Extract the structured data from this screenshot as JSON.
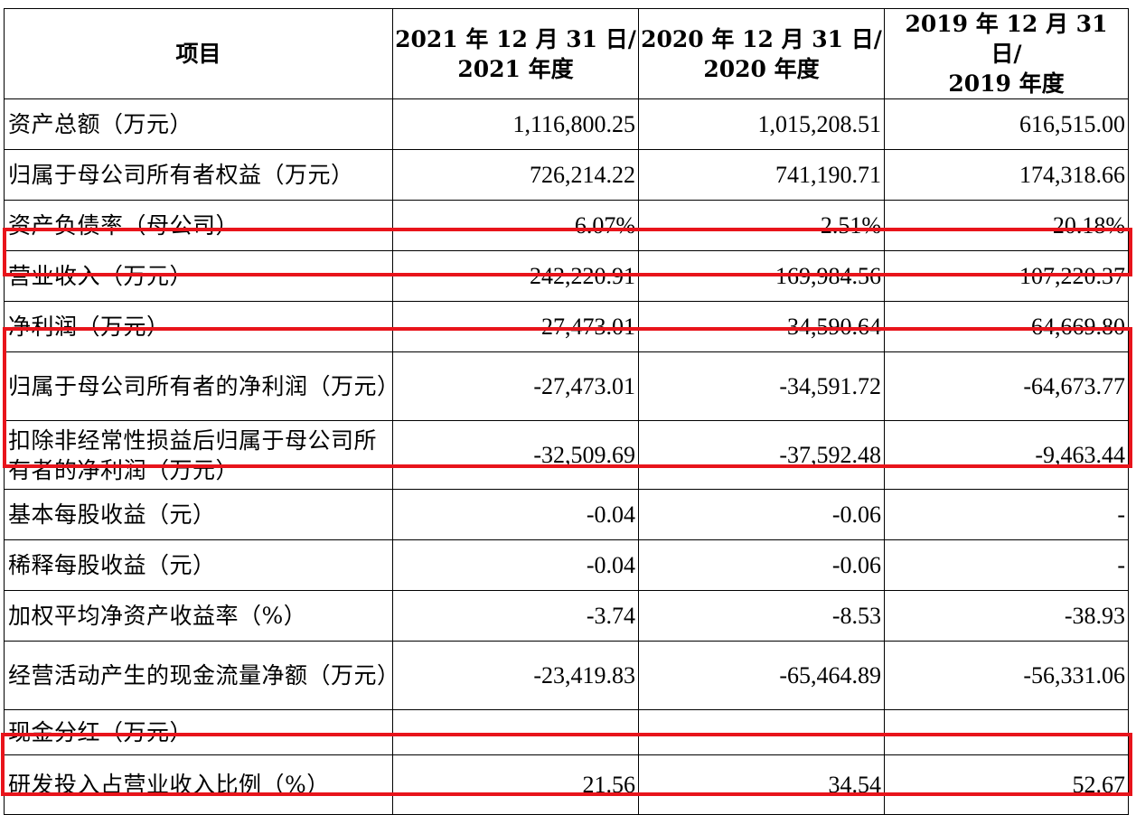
{
  "table": {
    "headers": [
      {
        "line1": "项目",
        "line2": ""
      },
      {
        "line1": "2021 年 12 月 31 日/",
        "line2": "2021 年度"
      },
      {
        "line1": "2020 年 12 月 31 日/",
        "line2": "2020 年度"
      },
      {
        "line1": "2019 年 12 月 31 日/",
        "line2": "2019 年度"
      }
    ],
    "rows": [
      {
        "label": "资产总额（万元）",
        "values": [
          "1,116,800.25",
          "1,015,208.51",
          "616,515.00"
        ]
      },
      {
        "label": "归属于母公司所有者权益（万元）",
        "values": [
          "726,214.22",
          "741,190.71",
          "174,318.66"
        ]
      },
      {
        "label": "资产负债率（母公司）",
        "values": [
          "6.07%",
          "2.51%",
          "20.18%"
        ]
      },
      {
        "label": "营业收入（万元）",
        "values": [
          "242,220.91",
          "169,984.56",
          "107,220.37"
        ]
      },
      {
        "label": "净利润（万元）",
        "values": [
          "-27,473.01",
          "-34,590.64",
          "-64,669.80"
        ]
      },
      {
        "label": "归属于母公司所有者的净利润（万元）",
        "values": [
          "-27,473.01",
          "-34,591.72",
          "-64,673.77"
        ]
      },
      {
        "label": "扣除非经常性损益后归属于母公司所有者的净利润（万元）",
        "values": [
          "-32,509.69",
          "-37,592.48",
          "-9,463.44"
        ]
      },
      {
        "label": "基本每股收益（元）",
        "values": [
          "-0.04",
          "-0.06",
          "-"
        ]
      },
      {
        "label": "稀释每股收益（元）",
        "values": [
          "-0.04",
          "-0.06",
          "-"
        ]
      },
      {
        "label": "加权平均净资产收益率（%）",
        "values": [
          "-3.74",
          "-8.53",
          "-38.93"
        ]
      },
      {
        "label": "经营活动产生的现金流量净额（万元）",
        "values": [
          "-23,419.83",
          "-65,464.89",
          "-56,331.06"
        ]
      },
      {
        "label": "现金分红（万元）",
        "values": [
          "-",
          "-",
          "-"
        ]
      },
      {
        "label": "研发投入占营业收入比例（%）",
        "values": [
          "21.56",
          "34.54",
          "52.67"
        ]
      }
    ]
  },
  "highlight_color": "#e8141b"
}
